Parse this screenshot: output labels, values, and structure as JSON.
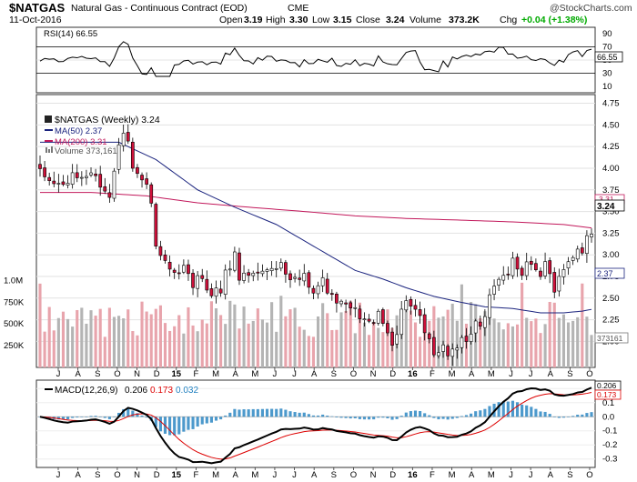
{
  "header": {
    "symbol": "$NATGAS",
    "name": "Natural Gas - Continuous Contract (EOD)",
    "exchange": "CME",
    "date": "11-Oct-2016",
    "open_label": "Open",
    "open": "3.19",
    "high_label": "High",
    "high": "3.30",
    "low_label": "Low",
    "low": "3.15",
    "close_label": "Close",
    "close": "3.24",
    "volume_label": "Volume",
    "volume": "373.2K",
    "chg_label": "Chg",
    "chg": "+0.04 (+1.38%)",
    "chg_color": "#00aa00",
    "watermark": "@StockCharts.com"
  },
  "rsi": {
    "label": "RSI(14) 66.55",
    "value_tag": "66.55",
    "ticks": [
      "90",
      "70",
      "50",
      "30",
      "10"
    ],
    "tick_values": [
      90,
      70,
      50,
      30,
      10
    ],
    "levels": [
      70,
      30
    ],
    "ylim": [
      0,
      100
    ]
  },
  "price": {
    "title": "$NATGAS (Weekly) 3.24",
    "legend": [
      {
        "text": "MA(50) 2.37",
        "color": "#1a237e"
      },
      {
        "text": "MA(200) 3.31",
        "color": "#c2185b"
      },
      {
        "text": "Volume 373,161",
        "color": "#555555"
      }
    ],
    "last_tag": "3.24",
    "ma200_tag": "3.31",
    "ma50_tag": "2.37",
    "vol_tag": "373161",
    "ticks": [
      "4.75",
      "4.50",
      "4.25",
      "4.00",
      "3.75",
      "3.50",
      "3.25",
      "3.00",
      "2.75",
      "2.50",
      "2.25",
      "2.00"
    ],
    "tick_values": [
      4.75,
      4.5,
      4.25,
      4.0,
      3.75,
      3.5,
      3.25,
      3.0,
      2.75,
      2.5,
      2.25,
      2.0
    ],
    "ylim": [
      1.7,
      4.85
    ],
    "vol_ticks": [
      "1.0M",
      "750K",
      "500K",
      "250K"
    ],
    "vol_tick_values": [
      1000000,
      750000,
      500000,
      250000
    ],
    "up_color": "#ffffff",
    "down_color": "#d0103a",
    "vol_up_color": "#b4b4b4",
    "vol_down_color": "#e8a4ac"
  },
  "x_axis": {
    "labels": [
      "J",
      "A",
      "S",
      "O",
      "N",
      "D",
      "15",
      "F",
      "M",
      "A",
      "M",
      "J",
      "J",
      "A",
      "S",
      "O",
      "N",
      "D",
      "16",
      "F",
      "M",
      "A",
      "M",
      "J",
      "J",
      "A",
      "S",
      "O"
    ],
    "bold": [
      "15",
      "16"
    ]
  },
  "macd": {
    "label_prefix": "MACD(12,26,9)",
    "value1": "0.206",
    "value2": "0.173",
    "value3": "0.032",
    "color_macd": "#000000",
    "color_signal": "#dd0000",
    "color_hist": "#1f7fbf",
    "tag1": "0.206",
    "tag2": "0.173",
    "ticks": [
      "0.2",
      "0.1",
      "0.0",
      "-0.1",
      "-0.2",
      "-0.3"
    ],
    "tick_values": [
      0.2,
      0.1,
      0.0,
      -0.1,
      -0.2,
      -0.3
    ],
    "ylim": [
      -0.36,
      0.26
    ]
  },
  "chart_data": {
    "type": "candlestick",
    "title": "$NATGAS (Weekly) 3.24",
    "period": "weekly",
    "weeks": 120,
    "anchors_close": [
      [
        0,
        3.95
      ],
      [
        2,
        3.85
      ],
      [
        4,
        3.8
      ],
      [
        6,
        3.9
      ],
      [
        8,
        3.9
      ],
      [
        10,
        3.95
      ],
      [
        12,
        3.75
      ],
      [
        13,
        3.65
      ],
      [
        15,
        4.3
      ],
      [
        16,
        4.45
      ],
      [
        17,
        4.35
      ],
      [
        18,
        4.0
      ],
      [
        19,
        3.85
      ],
      [
        20,
        3.85
      ],
      [
        21,
        3.55
      ],
      [
        22,
        3.1
      ],
      [
        23,
        2.95
      ],
      [
        24,
        2.9
      ],
      [
        25,
        2.8
      ],
      [
        26,
        2.75
      ],
      [
        27,
        2.85
      ],
      [
        28,
        2.75
      ],
      [
        29,
        2.65
      ],
      [
        30,
        2.8
      ],
      [
        32,
        2.6
      ],
      [
        33,
        2.55
      ],
      [
        34,
        2.6
      ],
      [
        35,
        2.8
      ],
      [
        36,
        2.85
      ],
      [
        37,
        3.05
      ],
      [
        38,
        2.7
      ],
      [
        39,
        2.8
      ],
      [
        40,
        2.75
      ],
      [
        41,
        2.8
      ],
      [
        42,
        2.85
      ],
      [
        43,
        2.8
      ],
      [
        44,
        2.85
      ],
      [
        45,
        2.8
      ],
      [
        46,
        2.9
      ],
      [
        47,
        2.75
      ],
      [
        48,
        2.7
      ],
      [
        50,
        2.75
      ],
      [
        52,
        2.6
      ],
      [
        54,
        2.7
      ],
      [
        56,
        2.5
      ],
      [
        58,
        2.4
      ],
      [
        60,
        2.35
      ],
      [
        62,
        2.25
      ],
      [
        63,
        2.2
      ],
      [
        64,
        2.3
      ],
      [
        66,
        2.1
      ],
      [
        67,
        2.0
      ],
      [
        68,
        2.1
      ],
      [
        69,
        2.35
      ],
      [
        70,
        2.5
      ],
      [
        71,
        2.4
      ],
      [
        72,
        2.25
      ],
      [
        73,
        2.1
      ],
      [
        74,
        2.0
      ],
      [
        75,
        1.8
      ],
      [
        76,
        1.9
      ],
      [
        77,
        1.95
      ],
      [
        78,
        1.85
      ],
      [
        79,
        1.95
      ],
      [
        80,
        2.0
      ],
      [
        81,
        1.95
      ],
      [
        82,
        2.1
      ],
      [
        83,
        2.25
      ],
      [
        84,
        2.2
      ],
      [
        85,
        2.3
      ],
      [
        86,
        2.5
      ],
      [
        87,
        2.7
      ],
      [
        88,
        2.75
      ],
      [
        89,
        2.8
      ],
      [
        90,
        3.0
      ],
      [
        91,
        2.85
      ],
      [
        92,
        2.75
      ],
      [
        93,
        2.9
      ],
      [
        94,
        2.8
      ],
      [
        95,
        2.75
      ],
      [
        96,
        2.95
      ],
      [
        97,
        2.8
      ],
      [
        98,
        2.6
      ],
      [
        99,
        2.75
      ],
      [
        100,
        2.85
      ],
      [
        101,
        2.95
      ],
      [
        102,
        3.05
      ],
      [
        103,
        3.0
      ],
      [
        104,
        3.25
      ],
      [
        105,
        3.24
      ]
    ],
    "ma50": [
      [
        0,
        4.3
      ],
      [
        15,
        4.3
      ],
      [
        22,
        4.1
      ],
      [
        30,
        3.75
      ],
      [
        37,
        3.55
      ],
      [
        45,
        3.35
      ],
      [
        52,
        3.1
      ],
      [
        60,
        2.82
      ],
      [
        65,
        2.72
      ],
      [
        70,
        2.62
      ],
      [
        75,
        2.52
      ],
      [
        80,
        2.45
      ],
      [
        85,
        2.4
      ],
      [
        90,
        2.38
      ],
      [
        95,
        2.33
      ],
      [
        100,
        2.33
      ],
      [
        103,
        2.35
      ],
      [
        105,
        2.37
      ]
    ],
    "ma200": [
      [
        0,
        3.72
      ],
      [
        10,
        3.72
      ],
      [
        20,
        3.68
      ],
      [
        30,
        3.6
      ],
      [
        40,
        3.55
      ],
      [
        50,
        3.5
      ],
      [
        60,
        3.45
      ],
      [
        70,
        3.42
      ],
      [
        80,
        3.4
      ],
      [
        90,
        3.38
      ],
      [
        100,
        3.35
      ],
      [
        105,
        3.31
      ]
    ],
    "volume_last": 373161,
    "rsi_last": 66.55,
    "macd_last": 0.206,
    "signal_last": 0.173,
    "hist_last": 0.032
  }
}
